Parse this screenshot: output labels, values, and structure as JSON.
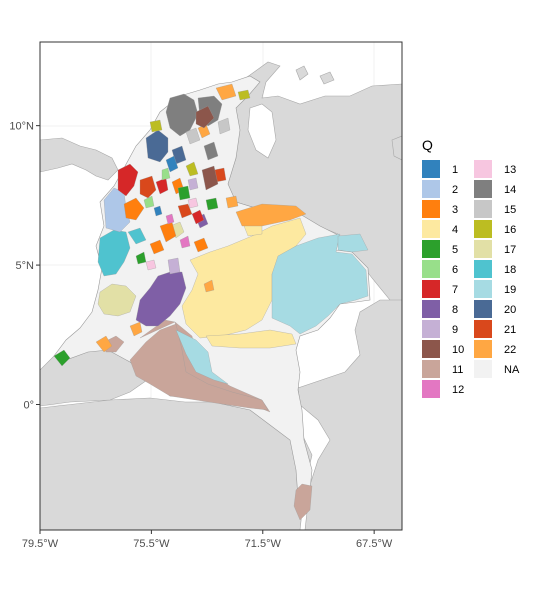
{
  "map": {
    "x_ticks": [
      {
        "label": "79.5°W",
        "lon": -79.5
      },
      {
        "label": "75.5°W",
        "lon": -75.5
      },
      {
        "label": "71.5°W",
        "lon": -71.5
      },
      {
        "label": "67.5°W",
        "lon": -67.5
      }
    ],
    "y_ticks": [
      {
        "label": "10°N",
        "lat": 10
      },
      {
        "label": "5°N",
        "lat": 5
      },
      {
        "label": "0°",
        "lat": 0
      }
    ],
    "lon_range": [
      -79.5,
      -66.5
    ],
    "lat_range": [
      -4.5,
      13.0
    ],
    "colors": {
      "ocean": "#ffffff",
      "neighbors": "#d9d9d9",
      "colombia_na": "#f2f2f2",
      "border": "#9a9a9a"
    }
  },
  "legend": {
    "title": "Q",
    "items": [
      {
        "label": "1",
        "color": "#3182bd"
      },
      {
        "label": "2",
        "color": "#aec7e8"
      },
      {
        "label": "3",
        "color": "#ff7f0e"
      },
      {
        "label": "4",
        "color": "#fde9a0"
      },
      {
        "label": "5",
        "color": "#2ca02c"
      },
      {
        "label": "6",
        "color": "#98df8a"
      },
      {
        "label": "7",
        "color": "#d62728"
      },
      {
        "label": "8",
        "color": "#7f5fa6"
      },
      {
        "label": "9",
        "color": "#c5b0d5"
      },
      {
        "label": "10",
        "color": "#8c564b"
      },
      {
        "label": "11",
        "color": "#c9a59a"
      },
      {
        "label": "12",
        "color": "#e377c2"
      },
      {
        "label": "13",
        "color": "#f7c6e0"
      },
      {
        "label": "14",
        "color": "#7f7f7f"
      },
      {
        "label": "15",
        "color": "#c7c7c7"
      },
      {
        "label": "16",
        "color": "#bcbd22"
      },
      {
        "label": "17",
        "color": "#e2e0a6"
      },
      {
        "label": "18",
        "color": "#4fc3cf"
      },
      {
        "label": "19",
        "color": "#a6dbe3"
      },
      {
        "label": "20",
        "color": "#4a6a95"
      },
      {
        "label": "21",
        "color": "#d9481c"
      },
      {
        "label": "22",
        "color": "#ffa743"
      },
      {
        "label": "NA",
        "color": "#f2f2f2"
      }
    ]
  }
}
